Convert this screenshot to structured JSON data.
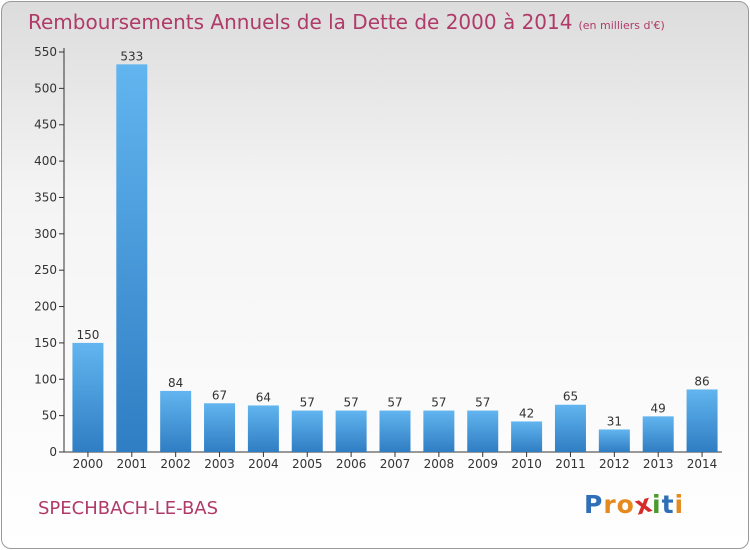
{
  "title": "Remboursements Annuels de la Dette de 2000 à 2014",
  "unit_note": "(en milliers d'€)",
  "commune": "SPECHBACH-LE-BAS",
  "logo": {
    "text": "Proxiti",
    "letters": [
      {
        "ch": "P",
        "color": "#2e6fb7"
      },
      {
        "ch": "r",
        "color": "#e58a1f"
      },
      {
        "ch": "o",
        "color": "#e58a1f"
      },
      {
        "ch": "x",
        "color": "#d62b2b"
      },
      {
        "ch": "i",
        "color": "#4a9a2c"
      },
      {
        "ch": "t",
        "color": "#2e6fb7"
      },
      {
        "ch": "i",
        "color": "#e58a1f"
      }
    ]
  },
  "colors": {
    "title": "#b03a68",
    "bar_top": "#62b5ef",
    "bar_bottom": "#2f7dc3",
    "axis": "#333333",
    "tick_label": "#333333"
  },
  "chart_data": {
    "type": "bar",
    "title": "Remboursements Annuels de la Dette de 2000 à 2014",
    "ylabel": "",
    "xlabel": "",
    "categories": [
      "2000",
      "2001",
      "2002",
      "2003",
      "2004",
      "2005",
      "2006",
      "2007",
      "2008",
      "2009",
      "2010",
      "2011",
      "2012",
      "2013",
      "2014"
    ],
    "values": [
      150,
      533,
      84,
      67,
      64,
      57,
      57,
      57,
      57,
      57,
      42,
      65,
      31,
      49,
      86
    ],
    "ylim": [
      0,
      550
    ],
    "yticks": [
      0,
      50,
      100,
      150,
      200,
      250,
      300,
      350,
      400,
      450,
      500,
      550
    ],
    "grid": false,
    "data_labels": true
  }
}
